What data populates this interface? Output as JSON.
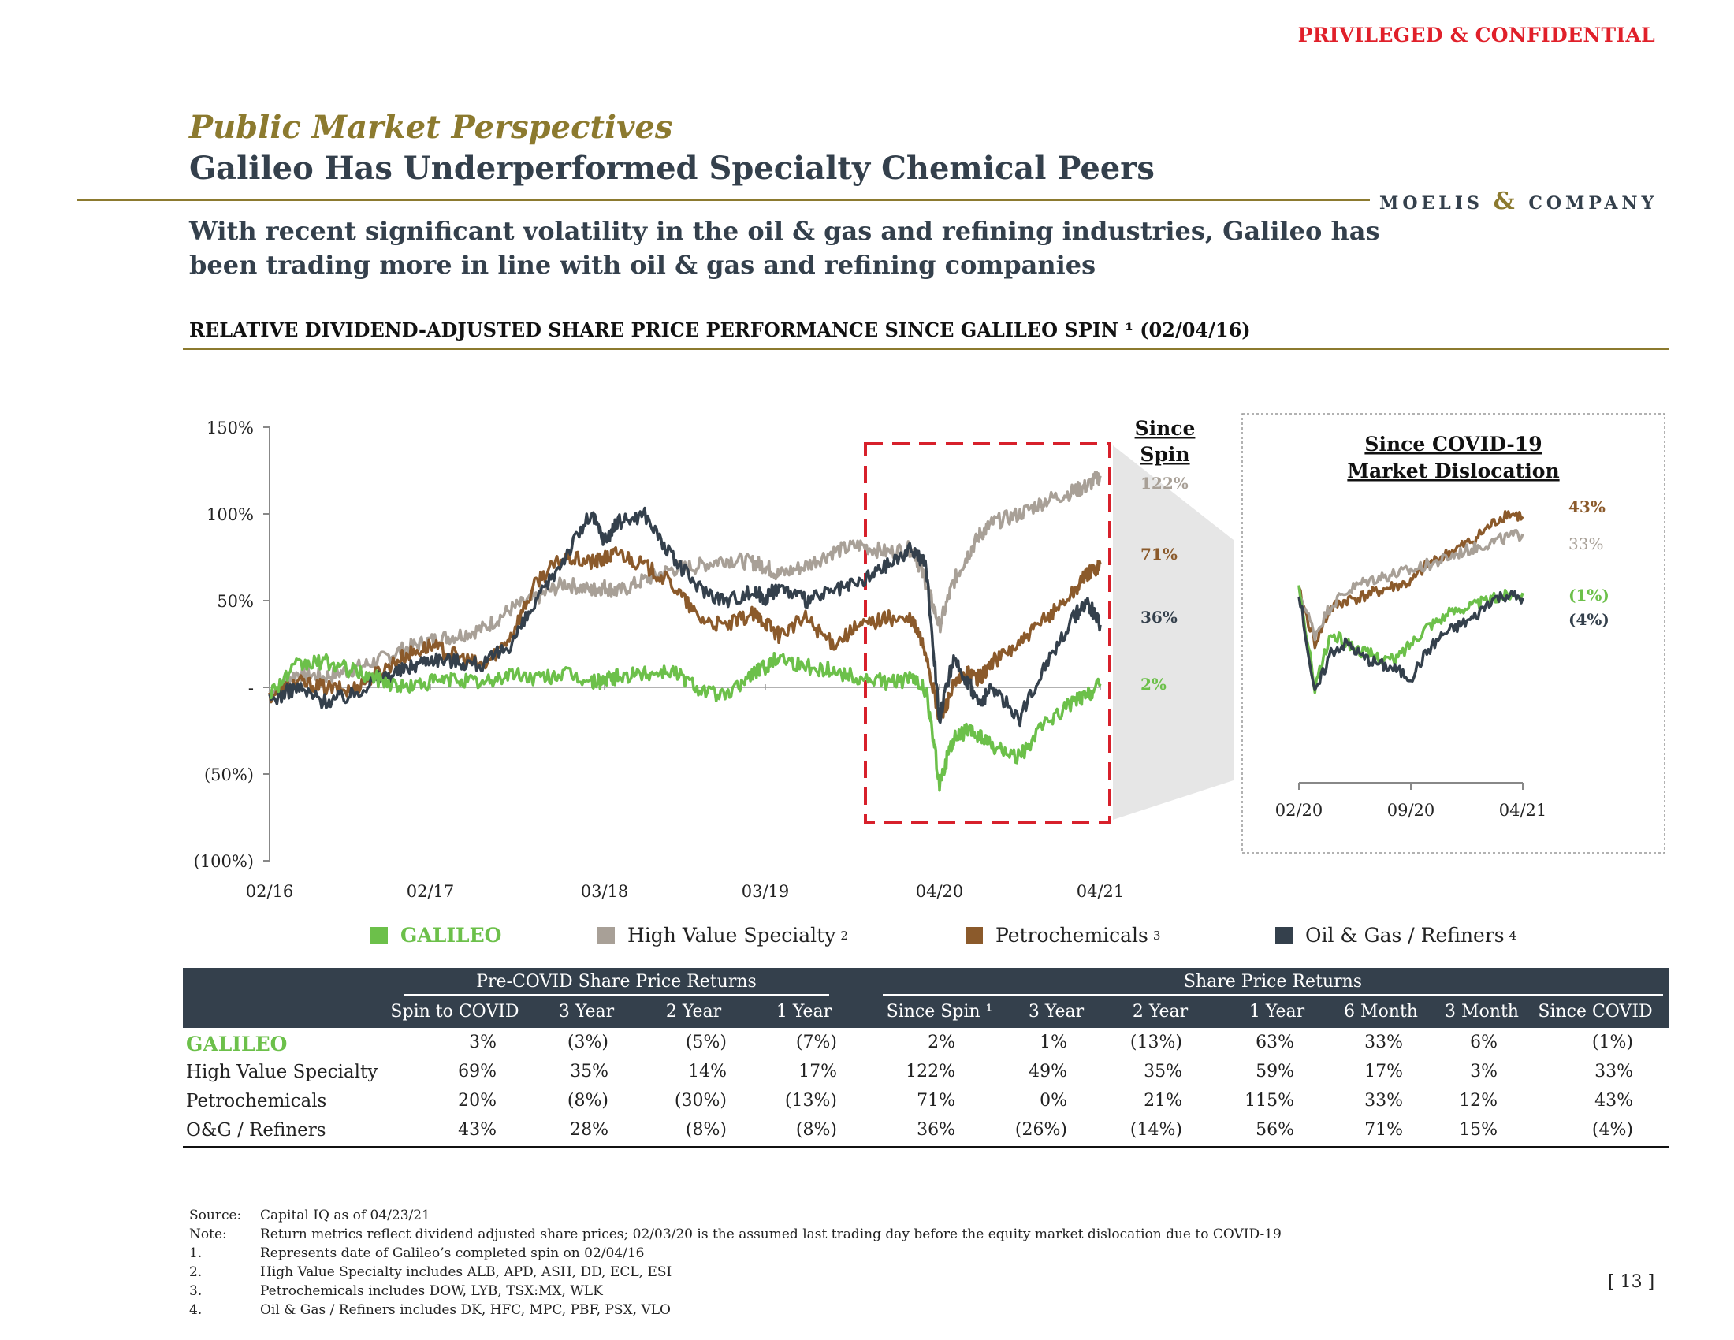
{
  "header": {
    "confidential": "PRIVILEGED & CONFIDENTIAL",
    "subtitle": "Public Market Perspectives",
    "title": "Galileo Has Underperformed Specialty Chemical Peers",
    "logo_left": "MOELIS",
    "logo_amp": "&",
    "logo_right": "COMPANY",
    "lead": "With recent significant volatility in the oil & gas and refining industries, Galileo has been trading more in line with oil & gas and refining companies",
    "section": "RELATIVE DIVIDEND-ADJUSTED SHARE PRICE PERFORMANCE SINCE GALILEO SPIN ¹ (02/04/16)"
  },
  "colors": {
    "galileo": "#6cc04a",
    "hvs": "#a8a097",
    "petro": "#8b5a2b",
    "og": "#34404c",
    "highlight": "#d7202b",
    "gold": "#8c7a2f"
  },
  "chart_data": [
    {
      "type": "line",
      "title": "Relative dividend-adjusted share price performance since Galileo spin",
      "ylabel": "",
      "xlabel": "",
      "ylim": [
        -100,
        150
      ],
      "yticks": [
        "150%",
        "100%",
        "50%",
        "-",
        "(50%)",
        "(100%)"
      ],
      "ytick_values": [
        150,
        100,
        50,
        0,
        -50,
        -100
      ],
      "xticks": [
        "02/16",
        "02/17",
        "03/18",
        "03/19",
        "04/20",
        "04/21"
      ],
      "xtick_values": [
        0,
        12,
        25,
        37,
        50,
        62
      ],
      "x_unit": "months since 02/04/16",
      "since_spin_header": [
        "Since",
        "Spin"
      ],
      "series": [
        {
          "name": "High Value Specialty",
          "color_key": "hvs",
          "end_label": "122%",
          "points": [
            [
              0,
              -3
            ],
            [
              2,
              8
            ],
            [
              4,
              6
            ],
            [
              6,
              10
            ],
            [
              8,
              15
            ],
            [
              10,
              22
            ],
            [
              12,
              27
            ],
            [
              14,
              30
            ],
            [
              16,
              34
            ],
            [
              18,
              45
            ],
            [
              20,
              52
            ],
            [
              22,
              60
            ],
            [
              24,
              56
            ],
            [
              25,
              58
            ],
            [
              26,
              55
            ],
            [
              28,
              62
            ],
            [
              30,
              68
            ],
            [
              32,
              70
            ],
            [
              34,
              74
            ],
            [
              36,
              72
            ],
            [
              37,
              70
            ],
            [
              38,
              65
            ],
            [
              40,
              70
            ],
            [
              42,
              78
            ],
            [
              44,
              82
            ],
            [
              46,
              78
            ],
            [
              48,
              80
            ],
            [
              49,
              60
            ],
            [
              50,
              35
            ],
            [
              51,
              60
            ],
            [
              52,
              75
            ],
            [
              53,
              88
            ],
            [
              54,
              95
            ],
            [
              56,
              100
            ],
            [
              58,
              108
            ],
            [
              60,
              113
            ],
            [
              61,
              116
            ],
            [
              62,
              122
            ]
          ]
        },
        {
          "name": "Petrochemicals",
          "color_key": "petro",
          "end_label": "71%",
          "points": [
            [
              0,
              -5
            ],
            [
              2,
              3
            ],
            [
              4,
              0
            ],
            [
              6,
              -2
            ],
            [
              8,
              8
            ],
            [
              10,
              18
            ],
            [
              12,
              24
            ],
            [
              14,
              18
            ],
            [
              16,
              12
            ],
            [
              18,
              30
            ],
            [
              20,
              62
            ],
            [
              22,
              75
            ],
            [
              24,
              72
            ],
            [
              25,
              74
            ],
            [
              26,
              78
            ],
            [
              28,
              70
            ],
            [
              30,
              60
            ],
            [
              32,
              40
            ],
            [
              34,
              35
            ],
            [
              36,
              42
            ],
            [
              37,
              38
            ],
            [
              38,
              30
            ],
            [
              40,
              40
            ],
            [
              42,
              25
            ],
            [
              44,
              35
            ],
            [
              46,
              40
            ],
            [
              48,
              38
            ],
            [
              49,
              20
            ],
            [
              50,
              -20
            ],
            [
              51,
              0
            ],
            [
              52,
              8
            ],
            [
              53,
              5
            ],
            [
              54,
              15
            ],
            [
              56,
              25
            ],
            [
              58,
              40
            ],
            [
              60,
              55
            ],
            [
              61,
              65
            ],
            [
              62,
              71
            ]
          ]
        },
        {
          "name": "Oil & Gas / Refiners",
          "color_key": "og",
          "end_label": "36%",
          "points": [
            [
              0,
              -8
            ],
            [
              2,
              0
            ],
            [
              4,
              -8
            ],
            [
              6,
              -5
            ],
            [
              8,
              5
            ],
            [
              10,
              10
            ],
            [
              12,
              17
            ],
            [
              14,
              15
            ],
            [
              16,
              13
            ],
            [
              18,
              25
            ],
            [
              20,
              50
            ],
            [
              22,
              75
            ],
            [
              24,
              100
            ],
            [
              25,
              85
            ],
            [
              26,
              95
            ],
            [
              28,
              100
            ],
            [
              30,
              75
            ],
            [
              32,
              58
            ],
            [
              34,
              50
            ],
            [
              36,
              55
            ],
            [
              37,
              52
            ],
            [
              38,
              58
            ],
            [
              40,
              50
            ],
            [
              42,
              55
            ],
            [
              44,
              60
            ],
            [
              46,
              70
            ],
            [
              48,
              80
            ],
            [
              49,
              70
            ],
            [
              50,
              -18
            ],
            [
              51,
              15
            ],
            [
              52,
              5
            ],
            [
              53,
              -10
            ],
            [
              54,
              0
            ],
            [
              56,
              -18
            ],
            [
              58,
              15
            ],
            [
              60,
              40
            ],
            [
              61,
              50
            ],
            [
              62,
              36
            ]
          ]
        },
        {
          "name": "GALILEO",
          "color_key": "galileo",
          "end_label": "2%",
          "points": [
            [
              0,
              -3
            ],
            [
              2,
              12
            ],
            [
              4,
              15
            ],
            [
              6,
              10
            ],
            [
              8,
              5
            ],
            [
              10,
              0
            ],
            [
              12,
              3
            ],
            [
              14,
              5
            ],
            [
              16,
              2
            ],
            [
              18,
              8
            ],
            [
              20,
              5
            ],
            [
              22,
              8
            ],
            [
              24,
              3
            ],
            [
              25,
              4
            ],
            [
              26,
              6
            ],
            [
              28,
              8
            ],
            [
              30,
              10
            ],
            [
              32,
              0
            ],
            [
              34,
              -6
            ],
            [
              36,
              8
            ],
            [
              37,
              12
            ],
            [
              38,
              18
            ],
            [
              40,
              12
            ],
            [
              42,
              10
            ],
            [
              44,
              5
            ],
            [
              46,
              3
            ],
            [
              48,
              5
            ],
            [
              49,
              -2
            ],
            [
              50,
              -55
            ],
            [
              51,
              -30
            ],
            [
              52,
              -25
            ],
            [
              53,
              -28
            ],
            [
              54,
              -35
            ],
            [
              56,
              -40
            ],
            [
              58,
              -20
            ],
            [
              60,
              -8
            ],
            [
              61,
              -5
            ],
            [
              62,
              2
            ]
          ]
        }
      ]
    },
    {
      "type": "line",
      "title": "Since COVID-19 Market Dislocation",
      "title_lines": [
        "Since COVID-19",
        "Market Dislocation"
      ],
      "xticks": [
        "02/20",
        "09/20",
        "04/21"
      ],
      "xtick_values": [
        0,
        7,
        14
      ],
      "x_unit": "months since 02/03/20",
      "series": [
        {
          "name": "Petrochemicals",
          "color_key": "petro",
          "end_label": "43%",
          "points": [
            [
              0,
              0
            ],
            [
              1,
              -30
            ],
            [
              2,
              -10
            ],
            [
              3,
              -5
            ],
            [
              4,
              -3
            ],
            [
              5,
              0
            ],
            [
              6,
              3
            ],
            [
              7,
              5
            ],
            [
              8,
              15
            ],
            [
              9,
              20
            ],
            [
              10,
              25
            ],
            [
              11,
              30
            ],
            [
              12,
              38
            ],
            [
              13,
              45
            ],
            [
              14,
              43
            ]
          ]
        },
        {
          "name": "High Value Specialty",
          "color_key": "hvs",
          "end_label": "33%",
          "points": [
            [
              0,
              0
            ],
            [
              1,
              -25
            ],
            [
              2,
              -8
            ],
            [
              3,
              0
            ],
            [
              4,
              5
            ],
            [
              5,
              8
            ],
            [
              6,
              10
            ],
            [
              7,
              12
            ],
            [
              8,
              15
            ],
            [
              9,
              18
            ],
            [
              10,
              22
            ],
            [
              11,
              25
            ],
            [
              12,
              28
            ],
            [
              13,
              31
            ],
            [
              14,
              33
            ]
          ]
        },
        {
          "name": "GALILEO",
          "color_key": "galileo",
          "end_label": "(1%)",
          "points": [
            [
              0,
              0
            ],
            [
              1,
              -55
            ],
            [
              2,
              -25
            ],
            [
              3,
              -30
            ],
            [
              4,
              -35
            ],
            [
              5,
              -38
            ],
            [
              6,
              -40
            ],
            [
              7,
              -30
            ],
            [
              8,
              -20
            ],
            [
              9,
              -15
            ],
            [
              10,
              -10
            ],
            [
              11,
              -8
            ],
            [
              12,
              -5
            ],
            [
              13,
              -2
            ],
            [
              14,
              -1
            ]
          ]
        },
        {
          "name": "Oil & Gas / Refiners",
          "color_key": "og",
          "end_label": "(4%)",
          "points": [
            [
              0,
              0
            ],
            [
              1,
              -60
            ],
            [
              2,
              -35
            ],
            [
              3,
              -30
            ],
            [
              4,
              -38
            ],
            [
              5,
              -42
            ],
            [
              6,
              -45
            ],
            [
              7,
              -50
            ],
            [
              8,
              -35
            ],
            [
              9,
              -25
            ],
            [
              10,
              -20
            ],
            [
              11,
              -15
            ],
            [
              12,
              -5
            ],
            [
              13,
              -2
            ],
            [
              14,
              -4
            ]
          ]
        }
      ]
    }
  ],
  "legend": [
    {
      "label": "GALILEO",
      "sup": "",
      "color_key": "galileo"
    },
    {
      "label": "High Value Specialty",
      "sup": "2",
      "color_key": "hvs"
    },
    {
      "label": "Petrochemicals",
      "sup": "3",
      "color_key": "petro"
    },
    {
      "label": "Oil & Gas / Refiners",
      "sup": "4",
      "color_key": "og"
    }
  ],
  "table": {
    "group1": "Pre-COVID Share Price Returns",
    "group2": "Share Price Returns",
    "columns": [
      "Spin to COVID",
      "3 Year",
      "2 Year",
      "1 Year",
      "Since Spin ¹",
      "3 Year",
      "2 Year",
      "1 Year",
      "6 Month",
      "3 Month",
      "Since COVID"
    ],
    "rows": [
      {
        "label": "GALILEO",
        "values": [
          "3%",
          "(3%)",
          "(5%)",
          "(7%)",
          "2%",
          "1%",
          "(13%)",
          "63%",
          "33%",
          "6%",
          "(1%)"
        ]
      },
      {
        "label": "High Value Specialty",
        "values": [
          "69%",
          "35%",
          "14%",
          "17%",
          "122%",
          "49%",
          "35%",
          "59%",
          "17%",
          "3%",
          "33%"
        ]
      },
      {
        "label": "Petrochemicals",
        "values": [
          "20%",
          "(8%)",
          "(30%)",
          "(13%)",
          "71%",
          "0%",
          "21%",
          "115%",
          "33%",
          "12%",
          "43%"
        ]
      },
      {
        "label": "O&G / Refiners",
        "values": [
          "43%",
          "28%",
          "(8%)",
          "(8%)",
          "36%",
          "(26%)",
          "(14%)",
          "56%",
          "71%",
          "15%",
          "(4%)"
        ]
      }
    ]
  },
  "notes": [
    {
      "key": "Source:",
      "text": "Capital IQ as of 04/23/21"
    },
    {
      "key": "Note:",
      "text": "Return metrics reflect dividend adjusted share prices; 02/03/20 is the assumed last trading day before the equity market dislocation due to COVID-19"
    },
    {
      "key": "1.",
      "text": "Represents date of Galileo’s completed spin on 02/04/16"
    },
    {
      "key": "2.",
      "text": "High Value Specialty includes ALB, APD, ASH, DD, ECL, ESI"
    },
    {
      "key": "3.",
      "text": "Petrochemicals includes DOW, LYB, TSX:MX, WLK"
    },
    {
      "key": "4.",
      "text": "Oil & Gas / Refiners includes DK, HFC, MPC, PBF, PSX, VLO"
    }
  ],
  "page_number": "[ 13 ]"
}
